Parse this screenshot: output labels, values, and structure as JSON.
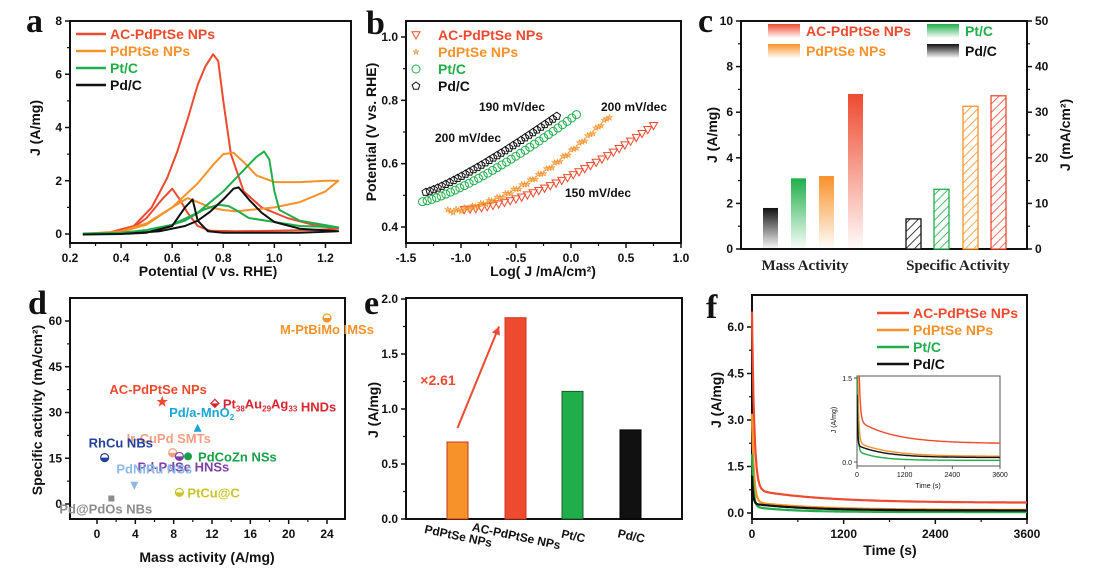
{
  "colors": {
    "ac": "#ee4a2f",
    "pdptse": "#f7922a",
    "ptc": "#1fae4a",
    "pdc": "#111111"
  },
  "chart_data": [
    {
      "panel": "a",
      "type": "line",
      "xlabel": "Potential (V vs. RHE)",
      "ylabel": "J (A/mg)",
      "xlim": [
        0.2,
        1.3
      ],
      "ylim": [
        -0.3,
        8
      ],
      "xticks": [
        "0.2",
        "0.4",
        "0.6",
        "0.8",
        "1.0",
        "1.2"
      ],
      "yticks": [
        "0",
        "2",
        "4",
        "6",
        "8"
      ],
      "legend": [
        "AC-PdPtSe NPs",
        "PdPtSe NPs",
        "Pt/C",
        "Pd/C"
      ],
      "legend_position": "top-left",
      "series": [
        {
          "name": "AC-PdPtSe NPs",
          "color_key": "ac",
          "x": [
            0.25,
            0.35,
            0.45,
            0.52,
            0.58,
            0.62,
            0.66,
            0.7,
            0.73,
            0.76,
            0.78,
            0.8,
            0.83,
            0.88,
            0.95,
            1.05,
            1.15,
            1.25,
            1.15,
            1.0,
            0.85,
            0.75,
            0.7,
            0.66,
            0.63,
            0.6,
            0.56,
            0.5,
            0.45,
            0.4,
            0.35,
            0.25
          ],
          "y": [
            0.0,
            0.05,
            0.3,
            1.0,
            2.1,
            3.1,
            4.3,
            5.6,
            6.3,
            6.75,
            6.5,
            5.0,
            3.0,
            1.6,
            1.0,
            0.6,
            0.35,
            0.2,
            0.15,
            0.12,
            0.1,
            0.12,
            0.3,
            0.8,
            1.3,
            1.7,
            1.3,
            0.6,
            0.25,
            0.1,
            0.03,
            0.0
          ]
        },
        {
          "name": "PdPtSe NPs",
          "color_key": "pdptse",
          "x": [
            0.25,
            0.4,
            0.5,
            0.6,
            0.7,
            0.76,
            0.8,
            0.84,
            0.88,
            0.93,
            1.0,
            1.1,
            1.2,
            1.25,
            1.2,
            1.1,
            1.0,
            0.9,
            0.85,
            0.8,
            0.75,
            0.7,
            0.66,
            0.6,
            0.5,
            0.4,
            0.25
          ],
          "y": [
            0.0,
            0.1,
            0.4,
            1.0,
            1.9,
            2.6,
            3.0,
            3.05,
            2.7,
            2.2,
            1.95,
            1.95,
            2.0,
            2.0,
            1.6,
            1.2,
            1.0,
            0.9,
            0.85,
            0.9,
            1.0,
            1.2,
            1.35,
            1.0,
            0.35,
            0.08,
            0.0
          ]
        },
        {
          "name": "Pt/C",
          "color_key": "ptc",
          "x": [
            0.25,
            0.4,
            0.5,
            0.6,
            0.7,
            0.8,
            0.88,
            0.93,
            0.96,
            0.98,
            1.0,
            1.02,
            1.1,
            1.25,
            1.1,
            1.0,
            0.9,
            0.85,
            0.82,
            0.78,
            0.72,
            0.65,
            0.55,
            0.4,
            0.25
          ],
          "y": [
            0.02,
            0.05,
            0.15,
            0.35,
            0.8,
            1.6,
            2.4,
            2.9,
            3.1,
            2.8,
            1.6,
            0.9,
            0.5,
            0.25,
            0.3,
            0.45,
            0.6,
            0.9,
            1.05,
            1.1,
            0.9,
            0.5,
            0.2,
            0.05,
            0.02
          ]
        },
        {
          "name": "Pd/C",
          "color_key": "pdc",
          "x": [
            0.25,
            0.4,
            0.55,
            0.65,
            0.7,
            0.75,
            0.8,
            0.84,
            0.86,
            0.9,
            0.95,
            1.0,
            1.1,
            1.25,
            1.1,
            0.95,
            0.8,
            0.74,
            0.7,
            0.68,
            0.65,
            0.6,
            0.5,
            0.4,
            0.25
          ],
          "y": [
            -0.02,
            0.0,
            0.1,
            0.3,
            0.5,
            0.85,
            1.3,
            1.7,
            1.75,
            1.3,
            0.8,
            0.45,
            0.2,
            0.1,
            0.05,
            0.05,
            0.05,
            0.1,
            0.5,
            1.3,
            1.0,
            0.3,
            0.05,
            0.0,
            -0.02
          ]
        }
      ]
    },
    {
      "panel": "b",
      "type": "scatter",
      "xlabel": "Log( J /mA/cm²)",
      "ylabel": "Potential (V vs. RHE)",
      "xlim": [
        -1.5,
        1.0
      ],
      "ylim": [
        0.35,
        1.05
      ],
      "xticks": [
        "-1.5",
        "-1.0",
        "-0.5",
        "0.0",
        "0.5",
        "1.0"
      ],
      "yticks": [
        "0.4",
        "0.6",
        "0.8",
        "1.0"
      ],
      "legend": [
        "AC-PdPtSe NPs",
        "PdPtSe NPs",
        "Pt/C",
        "Pd/C"
      ],
      "legend_position": "top-left",
      "annotations": [
        "200 mV/dec",
        "190 mV/dec",
        "200 mV/dec",
        "150 mV/dec"
      ],
      "series": [
        {
          "name": "AC-PdPtSe NPs",
          "marker": "triangle-down",
          "color_key": "ac",
          "x_range": [
            -0.97,
            0.75
          ],
          "y_range": [
            0.455,
            0.72
          ],
          "curvature": 1.6
        },
        {
          "name": "PdPtSe NPs",
          "marker": "star",
          "color_key": "pdptse",
          "x_range": [
            -1.12,
            0.35
          ],
          "y_range": [
            0.45,
            0.75
          ],
          "curvature": 1.7
        },
        {
          "name": "Pt/C",
          "marker": "circle",
          "color_key": "ptc",
          "x_range": [
            -1.35,
            0.05
          ],
          "y_range": [
            0.48,
            0.755
          ],
          "curvature": 1.3
        },
        {
          "name": "Pd/C",
          "marker": "pentagon",
          "color_key": "pdc",
          "x_range": [
            -1.32,
            -0.13
          ],
          "y_range": [
            0.51,
            0.75
          ],
          "curvature": 1.2
        }
      ]
    },
    {
      "panel": "c",
      "type": "bar",
      "categories": [
        "Mass Activity",
        "Specific Activity"
      ],
      "ylabel": "J (A/mg)",
      "ylabel_right": "J (mA/cm²)",
      "ylim": [
        0,
        10
      ],
      "ylim_right": [
        0,
        50
      ],
      "yticks": [
        "0",
        "2",
        "4",
        "6",
        "8",
        "10"
      ],
      "yticks_right": [
        "0",
        "10",
        "20",
        "30",
        "40",
        "50"
      ],
      "legend": [
        "AC-PdPtSe NPs",
        "PdPtSe NPs",
        "Pt/C",
        "Pd/C"
      ],
      "legend_position": "top",
      "series": [
        {
          "name": "Pd/C",
          "color_key": "pdc",
          "mass": 1.8,
          "specific": 6.6
        },
        {
          "name": "Pt/C",
          "color_key": "ptc",
          "mass": 3.1,
          "specific": 13.1
        },
        {
          "name": "PdPtSe NPs",
          "color_key": "pdptse",
          "mass": 3.2,
          "specific": 31.3
        },
        {
          "name": "AC-PdPtSe NPs",
          "color_key": "ac",
          "mass": 6.8,
          "specific": 33.6
        }
      ]
    },
    {
      "panel": "d",
      "type": "scatter",
      "xlabel": "Mass activity (A/mg)",
      "ylabel": "Specific activity (mA/cm²)",
      "xlim": [
        -2.8,
        26
      ],
      "ylim": [
        -5,
        67.5
      ],
      "xticks": [
        "0",
        "4",
        "8",
        "12",
        "16",
        "20",
        "24"
      ],
      "yticks": [
        "0",
        "15",
        "30",
        "45",
        "60"
      ],
      "points": [
        {
          "label": "M-PtBiMo IMSs",
          "x": 24.0,
          "y": 61.0,
          "color": "#f7922a",
          "marker": "half-circle"
        },
        {
          "label": "AC-PdPtSe NPs",
          "x": 6.8,
          "y": 33.5,
          "color": "#ee4a2f",
          "marker": "star"
        },
        {
          "label": "Pt38Au29Ag33 HNDs",
          "x": 12.3,
          "y": 33.0,
          "color": "#d9252f",
          "marker": "half-diamond"
        },
        {
          "label": "Pd/a-MnO2",
          "x": 10.5,
          "y": 25.0,
          "color": "#1aa6d6",
          "marker": "triangle-up"
        },
        {
          "label": "Ir-CuPd SMTs",
          "x": 7.9,
          "y": 16.8,
          "color": "#f59d82",
          "marker": "half-circle"
        },
        {
          "label": "RhCu NBs",
          "x": 0.8,
          "y": 15.2,
          "color": "#23409a",
          "marker": "half-circle"
        },
        {
          "label": "Pd-PdSe HNSs",
          "x": 8.6,
          "y": 15.6,
          "color": "#7b3fa6",
          "marker": "half-circle"
        },
        {
          "label": "PdCoZn NSs",
          "x": 9.5,
          "y": 15.6,
          "color": "#17a046",
          "marker": "hexagon"
        },
        {
          "label": "PdNiRu NSs",
          "x": 3.9,
          "y": 6.0,
          "color": "#8db8e6",
          "marker": "triangle-down"
        },
        {
          "label": "PtCu@C",
          "x": 8.6,
          "y": 3.8,
          "color": "#c9c526",
          "marker": "half-circle"
        },
        {
          "label": "Pd@PdOs NBs",
          "x": 1.5,
          "y": 1.8,
          "color": "#8c8c8c",
          "marker": "square"
        }
      ]
    },
    {
      "panel": "e",
      "type": "bar",
      "categories": [
        "PdPtSe NPs",
        "AC-PdPtSe NPs",
        "Pt/C",
        "Pd/C"
      ],
      "values": [
        0.7,
        1.83,
        1.16,
        0.81
      ],
      "ylabel": "J (A/mg)",
      "ylim": [
        0,
        2.0
      ],
      "yticks": [
        "0.0",
        "0.5",
        "1.0",
        "1.5",
        "2.0"
      ],
      "annotation": "×2.61",
      "bar_color_keys": [
        "pdptse",
        "ac",
        "ptc",
        "pdc"
      ]
    },
    {
      "panel": "f",
      "type": "line",
      "xlabel": "Time (s)",
      "ylabel": "J (A/mg)",
      "xlim": [
        0,
        3600
      ],
      "ylim": [
        -0.1,
        7.0
      ],
      "xticks": [
        "0",
        "1200",
        "2400",
        "3600"
      ],
      "yticks": [
        "0.0",
        "1.5",
        "3.0",
        "4.5",
        "6.0"
      ],
      "legend": [
        "AC-PdPtSe NPs",
        "PdPtSe NPs",
        "Pt/C",
        "Pd/C"
      ],
      "legend_position": "top-right",
      "series": [
        {
          "name": "AC-PdPtSe NPs",
          "color_key": "ac",
          "j0": 6.5,
          "jinf": 0.33,
          "tau_fast": 30,
          "mid": 0.75,
          "tau_slow": 900
        },
        {
          "name": "PdPtSe NPs",
          "color_key": "pdptse",
          "j0": 3.2,
          "jinf": 0.1,
          "tau_fast": 25,
          "mid": 0.35,
          "tau_slow": 800
        },
        {
          "name": "Pt/C",
          "color_key": "ptc",
          "j0": 1.9,
          "jinf": 0.03,
          "tau_fast": 20,
          "mid": 0.2,
          "tau_slow": 500
        },
        {
          "name": "Pd/C",
          "color_key": "pdc",
          "j0": 1.2,
          "jinf": 0.08,
          "tau_fast": 15,
          "mid": 0.3,
          "tau_slow": 700
        }
      ],
      "inset": {
        "xlabel": "Time (s)",
        "ylabel": "J (A/mg)",
        "xlim": [
          0,
          3600
        ],
        "ylim": [
          -0.05,
          1.5
        ],
        "xticks": [
          "0",
          "1200",
          "2400",
          "3600"
        ],
        "yticks": [
          "0.0",
          "1.5"
        ]
      }
    }
  ],
  "panel_labels": [
    "a",
    "b",
    "c",
    "d",
    "e",
    "f"
  ]
}
